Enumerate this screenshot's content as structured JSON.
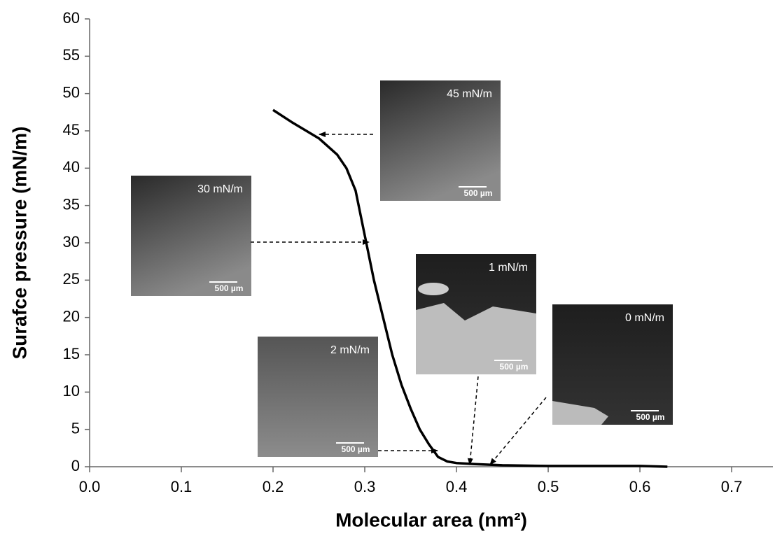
{
  "chart_data": {
    "type": "line",
    "x_label": "Molecular area (nm²)",
    "y_label": "Surafce pressure (mN/m)",
    "xlim": [
      0,
      0.745
    ],
    "ylim": [
      0,
      60
    ],
    "xticks": [
      {
        "value": 0,
        "label": "0.0"
      },
      0.1,
      0.2,
      0.3,
      0.4,
      0.5,
      0.6,
      0.7
    ],
    "yticks": [
      0,
      5,
      10,
      15,
      20,
      25,
      30,
      35,
      40,
      45,
      50,
      55,
      60
    ],
    "series": [
      {
        "color": "#000000",
        "x": [
          0.2,
          0.22,
          0.25,
          0.27,
          0.28,
          0.29,
          0.3,
          0.31,
          0.32,
          0.33,
          0.34,
          0.35,
          0.36,
          0.37,
          0.38,
          0.39,
          0.4,
          0.42,
          0.45,
          0.5,
          0.55,
          0.6,
          0.63
        ],
        "values": [
          47.8,
          46.2,
          44,
          41.8,
          40,
          37,
          31,
          25,
          20,
          15,
          11,
          7.8,
          5,
          3,
          1.3,
          0.7,
          0.5,
          0.35,
          0.2,
          0.1,
          0.1,
          0.1,
          0
        ]
      }
    ],
    "insets": [
      {
        "label": "45 mN/m",
        "scale_bar": "500 µm"
      },
      {
        "label": "30 mN/m",
        "scale_bar": "500 µm"
      },
      {
        "label": "2 mN/m",
        "scale_bar": "500 µm"
      },
      {
        "label": "1 mN/m",
        "scale_bar": "500 µm"
      },
      {
        "label": "0 mN/m",
        "scale_bar": "500 µm"
      }
    ]
  }
}
